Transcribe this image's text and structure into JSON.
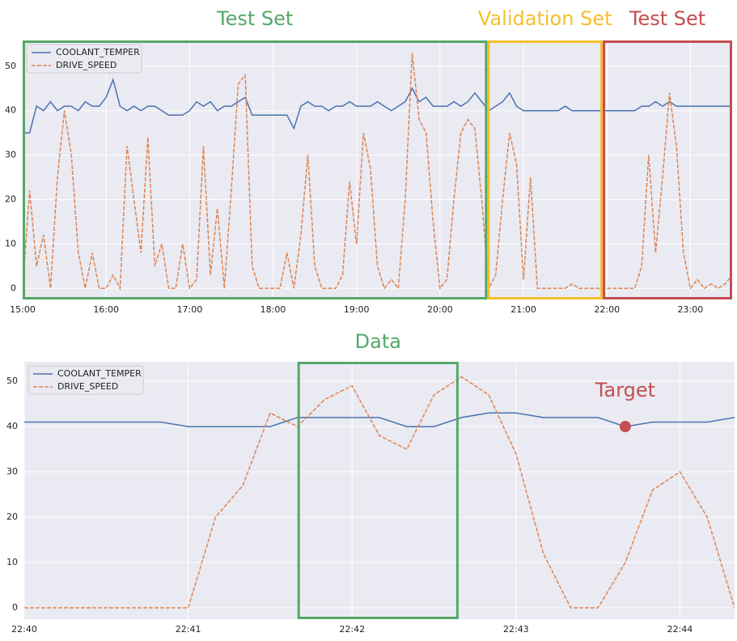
{
  "chart_data": [
    {
      "type": "line",
      "x": [
        "15:00",
        "15:05",
        "15:10",
        "15:15",
        "15:20",
        "15:25",
        "15:30",
        "15:35",
        "15:40",
        "15:45",
        "15:50",
        "15:55",
        "16:00",
        "16:05",
        "16:10",
        "16:15",
        "16:20",
        "16:25",
        "16:30",
        "16:35",
        "16:40",
        "16:45",
        "16:50",
        "16:55",
        "17:00",
        "17:05",
        "17:10",
        "17:15",
        "17:20",
        "17:25",
        "17:30",
        "17:35",
        "17:40",
        "17:45",
        "17:50",
        "17:55",
        "18:00",
        "18:05",
        "18:10",
        "18:15",
        "18:20",
        "18:25",
        "18:30",
        "18:35",
        "18:40",
        "18:45",
        "18:50",
        "18:55",
        "19:00",
        "19:05",
        "19:10",
        "19:15",
        "19:20",
        "19:25",
        "19:30",
        "19:35",
        "19:40",
        "19:45",
        "19:50",
        "19:55",
        "20:00",
        "20:05",
        "20:10",
        "20:15",
        "20:20",
        "20:25",
        "20:30",
        "20:35",
        "20:40",
        "20:45",
        "20:50",
        "20:55",
        "21:00",
        "21:05",
        "21:10",
        "21:15",
        "21:20",
        "21:25",
        "21:30",
        "21:35",
        "21:40",
        "21:45",
        "21:50",
        "21:55",
        "22:00",
        "22:05",
        "22:10",
        "22:15",
        "22:20",
        "22:25",
        "22:30",
        "22:35",
        "22:40",
        "22:45",
        "22:50",
        "22:55",
        "23:00",
        "23:05",
        "23:10",
        "23:15",
        "23:20",
        "23:25",
        "23:30"
      ],
      "series": [
        {
          "name": "COOLANT_TEMPER",
          "color": "#4c72b0",
          "dash": false,
          "values": [
            35,
            35,
            41,
            40,
            42,
            40,
            41,
            41,
            40,
            42,
            41,
            41,
            43,
            47,
            41,
            40,
            41,
            40,
            41,
            41,
            40,
            39,
            39,
            39,
            40,
            42,
            41,
            42,
            40,
            41,
            41,
            42,
            43,
            39,
            39,
            39,
            39,
            39,
            39,
            36,
            41,
            42,
            41,
            41,
            40,
            41,
            41,
            42,
            41,
            41,
            41,
            42,
            41,
            40,
            41,
            42,
            45,
            42,
            43,
            41,
            41,
            41,
            42,
            41,
            42,
            44,
            42,
            40,
            41,
            42,
            44,
            41,
            40,
            40,
            40,
            40,
            40,
            40,
            41,
            40,
            40,
            40,
            40,
            40,
            40,
            40,
            40,
            40,
            40,
            41,
            41,
            42,
            41,
            42,
            41,
            41,
            41,
            41,
            41,
            41,
            41,
            41,
            41
          ]
        },
        {
          "name": "DRIVE_SPEED",
          "color": "#dd8452",
          "dash": true,
          "values": [
            0,
            22,
            5,
            12,
            0,
            25,
            40,
            30,
            8,
            0,
            8,
            0,
            0,
            3,
            0,
            32,
            20,
            8,
            34,
            5,
            10,
            0,
            0,
            10,
            0,
            2,
            32,
            3,
            18,
            0,
            22,
            46,
            48,
            5,
            0,
            0,
            0,
            0,
            8,
            0,
            12,
            30,
            5,
            0,
            0,
            0,
            3,
            24,
            10,
            35,
            27,
            5,
            0,
            2,
            0,
            20,
            53,
            38,
            35,
            15,
            0,
            2,
            20,
            35,
            38,
            36,
            20,
            0,
            3,
            20,
            35,
            28,
            2,
            25,
            0,
            0,
            0,
            0,
            0,
            1,
            0,
            0,
            0,
            0,
            0,
            0,
            0,
            0,
            0,
            5,
            30,
            8,
            25,
            44,
            32,
            8,
            0,
            2,
            0,
            1,
            0,
            1,
            3
          ]
        }
      ],
      "xlim": [
        "15:00",
        "23:30"
      ],
      "xticks": [
        "15:00",
        "16:00",
        "17:00",
        "18:00",
        "19:00",
        "20:00",
        "21:00",
        "22:00",
        "23:00"
      ],
      "ylim": [
        -2.5,
        55.8
      ],
      "yticks": [
        0,
        10,
        20,
        30,
        40,
        50
      ],
      "grid": true,
      "legend": "upper left",
      "regions": [
        {
          "label": "Test Set",
          "start": "15:00",
          "end": "20:34",
          "color": "#55a868"
        },
        {
          "label": "Validation Set",
          "start": "20:34",
          "end": "21:57",
          "color": "#f5bf2a"
        },
        {
          "label": "Test Set",
          "start": "21:57",
          "end": "23:30",
          "color": "#c44e52"
        }
      ]
    },
    {
      "type": "line",
      "x": [
        "22:40:00",
        "22:40:10",
        "22:40:20",
        "22:40:30",
        "22:40:40",
        "22:40:50",
        "22:41:00",
        "22:41:10",
        "22:41:20",
        "22:41:30",
        "22:41:40",
        "22:41:50",
        "22:42:00",
        "22:42:10",
        "22:42:20",
        "22:42:30",
        "22:42:40",
        "22:42:50",
        "22:43:00",
        "22:43:10",
        "22:43:20",
        "22:43:30",
        "22:43:40",
        "22:43:50",
        "22:44:00",
        "22:44:10",
        "22:44:20"
      ],
      "series": [
        {
          "name": "COOLANT_TEMPER",
          "color": "#4c72b0",
          "dash": false,
          "values": [
            41,
            41,
            41,
            41,
            41,
            41,
            40,
            40,
            40,
            40,
            42,
            42,
            42,
            42,
            40,
            40,
            42,
            43,
            43,
            42,
            42,
            42,
            40,
            41,
            41,
            41,
            42
          ]
        },
        {
          "name": "DRIVE_SPEED",
          "color": "#dd8452",
          "dash": true,
          "values": [
            0,
            0,
            0,
            0,
            0,
            0,
            0,
            20,
            27,
            43,
            40,
            46,
            49,
            38,
            35,
            47,
            51,
            47,
            34,
            12,
            0,
            0,
            10,
            26,
            30,
            20,
            0
          ]
        }
      ],
      "xlim": [
        "22:40:00",
        "22:44:20"
      ],
      "xticks": [
        "22:40",
        "22:41",
        "22:42",
        "22:43",
        "22:44"
      ],
      "ylim": [
        -2.5,
        54.3
      ],
      "yticks": [
        0,
        10,
        20,
        30,
        40,
        50
      ],
      "grid": true,
      "legend": "upper left",
      "regions": [
        {
          "label": "Data",
          "start": "22:41:40",
          "end": "22:42:39",
          "color": "#55a868"
        }
      ],
      "markers": [
        {
          "label": "Target",
          "x": "22:43:40",
          "y": 40,
          "color": "#c44e52"
        }
      ]
    }
  ]
}
